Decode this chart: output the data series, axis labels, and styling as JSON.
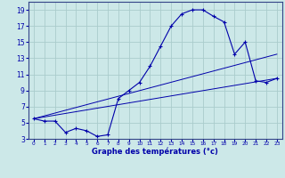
{
  "xlabel": "Graphe des températures (°c)",
  "background_color": "#cce8e8",
  "grid_color": "#aacccc",
  "line_color": "#0000aa",
  "xlim": [
    -0.5,
    23.5
  ],
  "ylim": [
    3,
    20
  ],
  "xticks": [
    0,
    1,
    2,
    3,
    4,
    5,
    6,
    7,
    8,
    9,
    10,
    11,
    12,
    13,
    14,
    15,
    16,
    17,
    18,
    19,
    20,
    21,
    22,
    23
  ],
  "yticks": [
    3,
    5,
    7,
    9,
    11,
    13,
    15,
    17,
    19
  ],
  "series1_x": [
    0,
    1,
    2,
    3,
    4,
    5,
    6,
    7,
    8,
    9,
    10,
    11,
    12,
    13,
    14,
    15,
    16,
    17,
    18,
    19,
    20,
    21,
    22,
    23
  ],
  "series1_y": [
    5.5,
    5.2,
    5.2,
    3.8,
    4.3,
    4.0,
    3.3,
    3.5,
    8.0,
    9.0,
    10.0,
    12.0,
    14.5,
    17.0,
    18.5,
    19.0,
    19.0,
    18.2,
    17.5,
    13.5,
    15.0,
    10.2,
    10.0,
    10.5
  ],
  "series2_x": [
    0,
    23
  ],
  "series2_y": [
    5.5,
    13.5
  ],
  "series3_x": [
    0,
    23
  ],
  "series3_y": [
    5.5,
    10.5
  ],
  "marker": "+"
}
